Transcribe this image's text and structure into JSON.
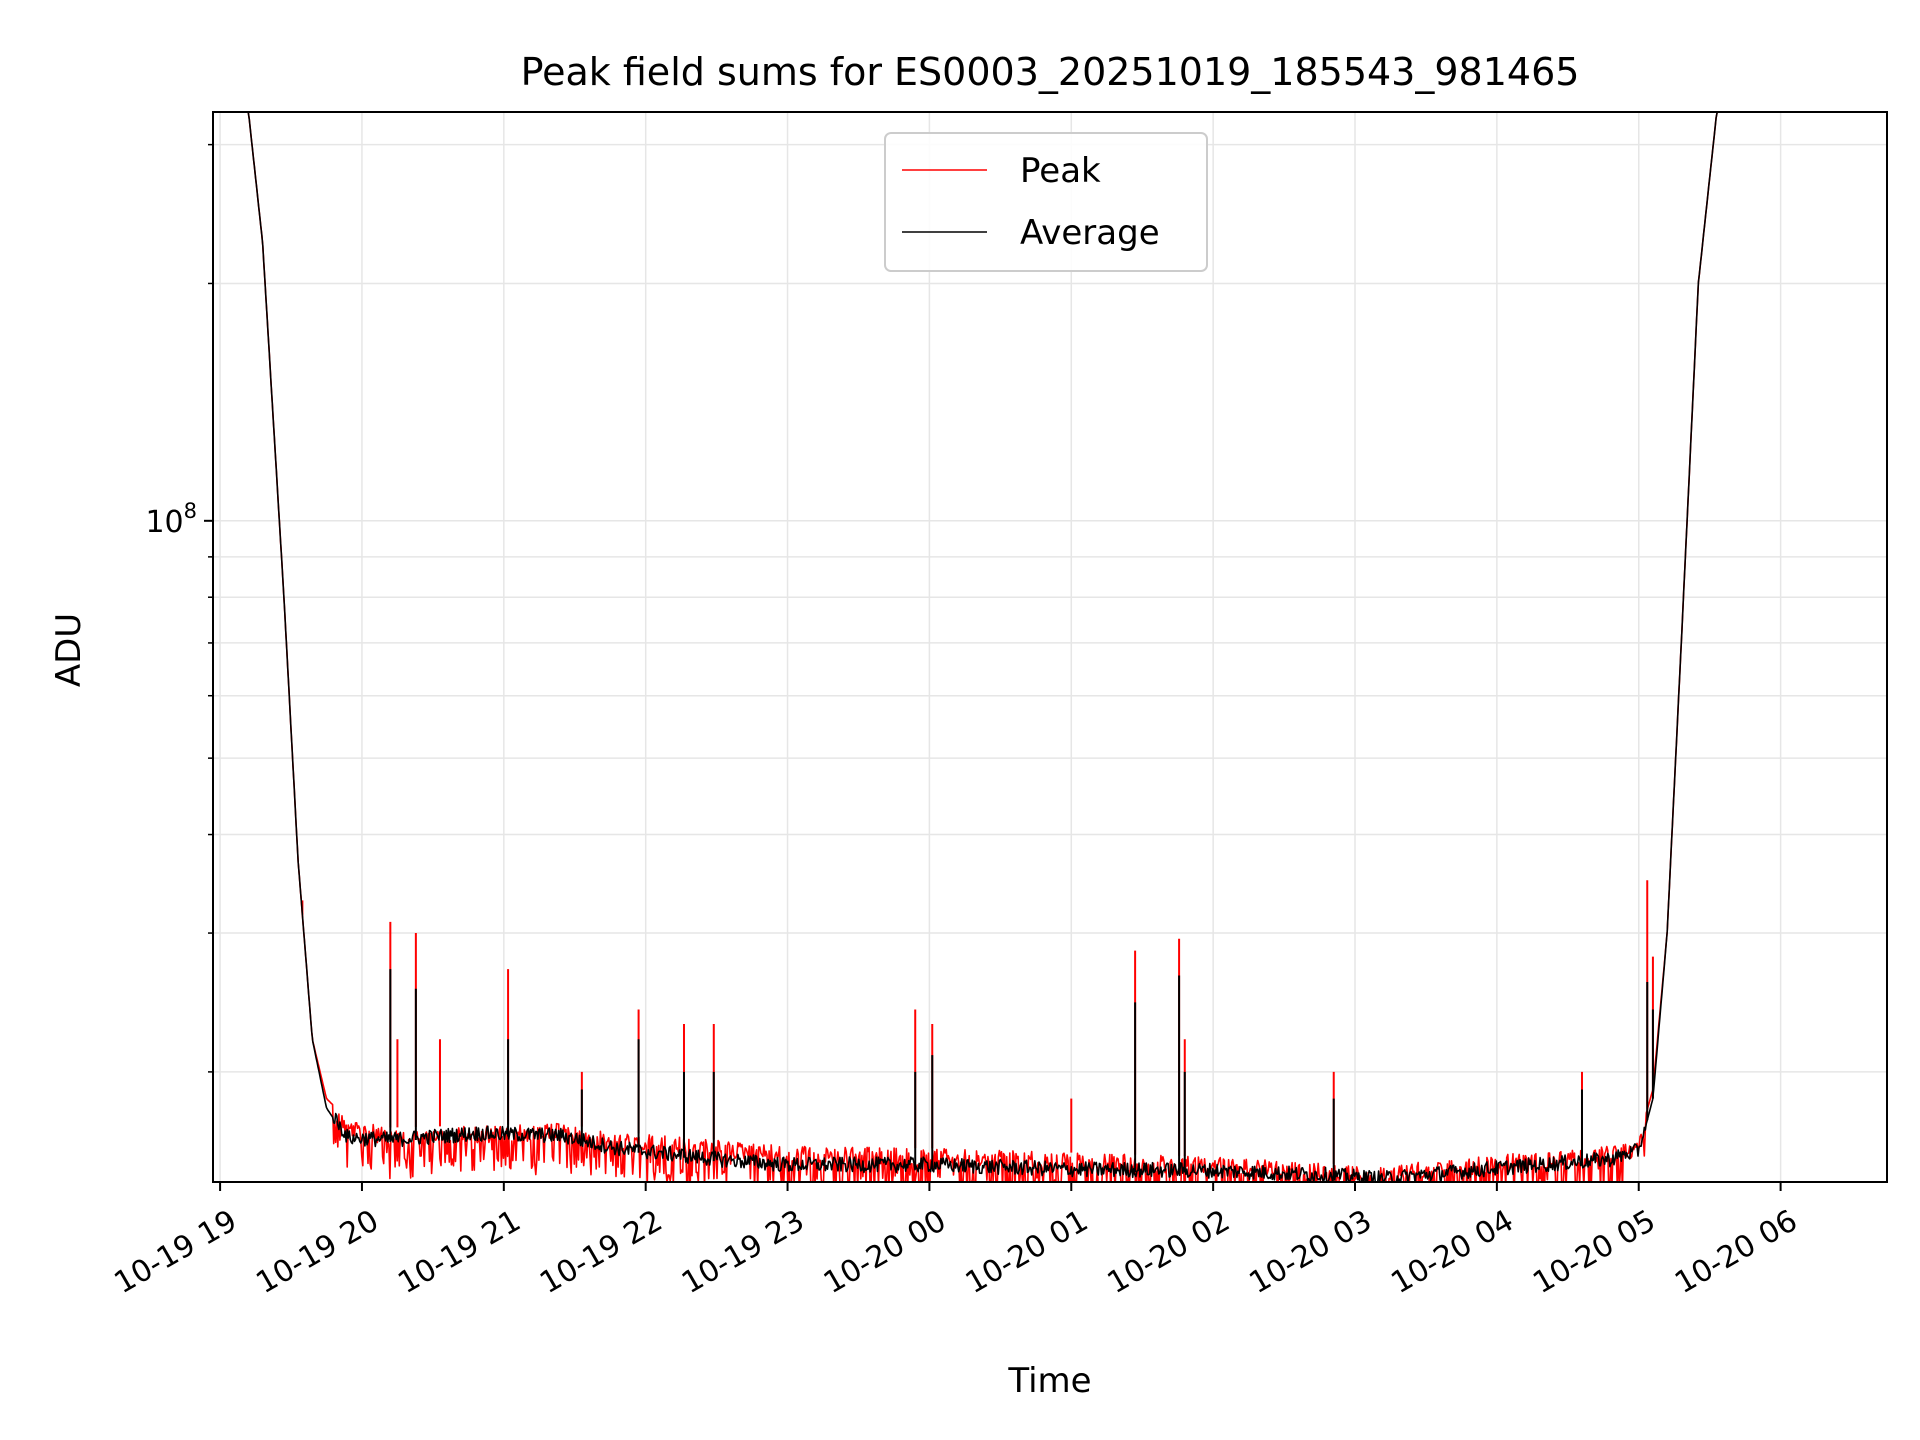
{
  "chart_data": {
    "type": "line",
    "title": "Peak field sums for ES0003_20251019_185543_981465",
    "xlabel": "Time",
    "ylabel": "ADU",
    "yscale": "log",
    "ylim": [
      14500000,
      330000000
    ],
    "xlim": [
      -0.05,
      11.75
    ],
    "x_units": "hours since 10-19 19:00",
    "grid": true,
    "legend_position": "upper center",
    "x_tick_labels": [
      "10-19 19",
      "10-19 20",
      "10-19 21",
      "10-19 22",
      "10-19 23",
      "10-20 00",
      "10-20 01",
      "10-20 02",
      "10-20 03",
      "10-20 04",
      "10-20 05",
      "10-20 06"
    ],
    "x_tick_values": [
      0,
      1,
      2,
      3,
      4,
      5,
      6,
      7,
      8,
      9,
      10,
      11
    ],
    "y_major_tick": {
      "value": 100000000,
      "label_base": "10",
      "label_exp": "8"
    },
    "y_minor_ticks": [
      20000000,
      30000000,
      40000000,
      50000000,
      60000000,
      70000000,
      80000000,
      90000000,
      200000000,
      300000000
    ],
    "series": [
      {
        "name": "Peak",
        "color": "#ff0000",
        "baseline": [
          [
            0.0,
            330000000
          ],
          [
            0.2,
            330000000
          ],
          [
            0.3,
            225000000
          ],
          [
            0.45,
            80000000
          ],
          [
            0.55,
            37000000
          ],
          [
            0.65,
            22000000
          ],
          [
            0.75,
            18500000
          ],
          [
            0.9,
            17400000
          ],
          [
            1.2,
            17000000
          ],
          [
            1.8,
            17100000
          ],
          [
            2.4,
            17200000
          ],
          [
            2.8,
            16800000
          ],
          [
            3.5,
            16400000
          ],
          [
            4.0,
            16100000
          ],
          [
            5.0,
            16000000
          ],
          [
            6.0,
            15800000
          ],
          [
            7.0,
            15600000
          ],
          [
            7.8,
            15300000
          ],
          [
            8.2,
            15200000
          ],
          [
            9.0,
            15700000
          ],
          [
            9.8,
            16100000
          ],
          [
            10.0,
            16400000
          ],
          [
            10.1,
            19000000
          ],
          [
            10.2,
            30000000
          ],
          [
            10.3,
            70000000
          ],
          [
            10.42,
            200000000
          ],
          [
            10.55,
            330000000
          ],
          [
            11.75,
            330000000
          ]
        ],
        "spikes": [
          [
            0.58,
            33000000
          ],
          [
            1.2,
            31000000
          ],
          [
            1.25,
            22000000
          ],
          [
            1.38,
            30000000
          ],
          [
            1.55,
            22000000
          ],
          [
            2.03,
            27000000
          ],
          [
            2.55,
            20000000
          ],
          [
            2.95,
            24000000
          ],
          [
            3.27,
            23000000
          ],
          [
            3.48,
            23000000
          ],
          [
            4.9,
            24000000
          ],
          [
            5.02,
            23000000
          ],
          [
            6.0,
            18500000
          ],
          [
            6.45,
            28500000
          ],
          [
            6.76,
            29500000
          ],
          [
            6.8,
            22000000
          ],
          [
            7.85,
            20000000
          ],
          [
            9.6,
            20000000
          ],
          [
            10.06,
            35000000
          ],
          [
            10.1,
            28000000
          ]
        ]
      },
      {
        "name": "Average",
        "color": "#000000",
        "baseline": [
          [
            0.0,
            330000000
          ],
          [
            0.2,
            330000000
          ],
          [
            0.3,
            225000000
          ],
          [
            0.45,
            80000000
          ],
          [
            0.55,
            37000000
          ],
          [
            0.65,
            22000000
          ],
          [
            0.75,
            18000000
          ],
          [
            0.9,
            16400000
          ],
          [
            1.2,
            16300000
          ],
          [
            1.8,
            16600000
          ],
          [
            2.4,
            16500000
          ],
          [
            2.8,
            15900000
          ],
          [
            3.5,
            15400000
          ],
          [
            4.0,
            15150000
          ],
          [
            5.0,
            15150000
          ],
          [
            6.0,
            14950000
          ],
          [
            7.0,
            14900000
          ],
          [
            7.8,
            14700000
          ],
          [
            8.2,
            14550000
          ],
          [
            9.0,
            15000000
          ],
          [
            9.8,
            15400000
          ],
          [
            10.0,
            15800000
          ],
          [
            10.1,
            18500000
          ],
          [
            10.2,
            30000000
          ],
          [
            10.3,
            70000000
          ],
          [
            10.42,
            200000000
          ],
          [
            10.55,
            330000000
          ],
          [
            11.75,
            330000000
          ]
        ],
        "spikes": [
          [
            1.2,
            27000000
          ],
          [
            1.38,
            25500000
          ],
          [
            2.03,
            22000000
          ],
          [
            2.55,
            19000000
          ],
          [
            2.95,
            22000000
          ],
          [
            3.27,
            20000000
          ],
          [
            3.48,
            20000000
          ],
          [
            4.9,
            20000000
          ],
          [
            5.02,
            21000000
          ],
          [
            6.45,
            24500000
          ],
          [
            6.76,
            26500000
          ],
          [
            6.8,
            20000000
          ],
          [
            7.85,
            18500000
          ],
          [
            9.6,
            19000000
          ],
          [
            10.06,
            26000000
          ],
          [
            10.1,
            24000000
          ]
        ]
      }
    ]
  }
}
